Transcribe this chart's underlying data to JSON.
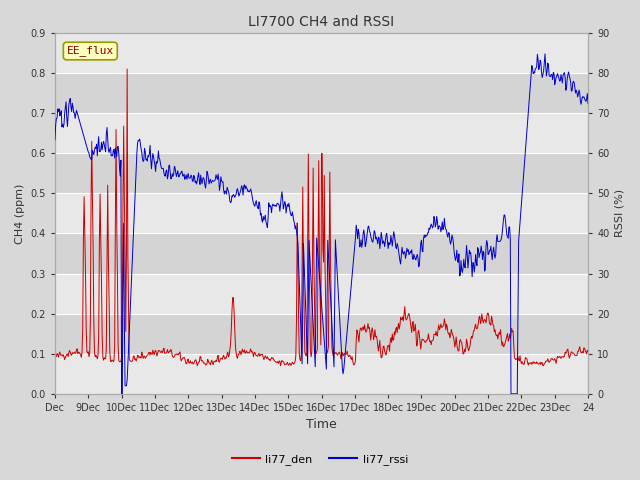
{
  "title": "LI7700 CH4 and RSSI",
  "xlabel": "Time",
  "ylabel_left": "CH4 (ppm)",
  "ylabel_right": "RSSI (%)",
  "site_label": "EE_flux",
  "legend": [
    "li77_den",
    "li77_rssi"
  ],
  "ylim_left": [
    0.0,
    0.9
  ],
  "ylim_right": [
    0,
    90
  ],
  "yticks_left": [
    0.0,
    0.1,
    0.2,
    0.3,
    0.4,
    0.5,
    0.6,
    0.7,
    0.8,
    0.9
  ],
  "yticks_right": [
    0,
    10,
    20,
    30,
    40,
    50,
    60,
    70,
    80,
    90
  ],
  "color_ch4": "#cc0000",
  "color_rssi": "#0000cc",
  "plot_bg": "#e8e8e8",
  "title_fontsize": 10,
  "label_fontsize": 8,
  "tick_fontsize": 7
}
